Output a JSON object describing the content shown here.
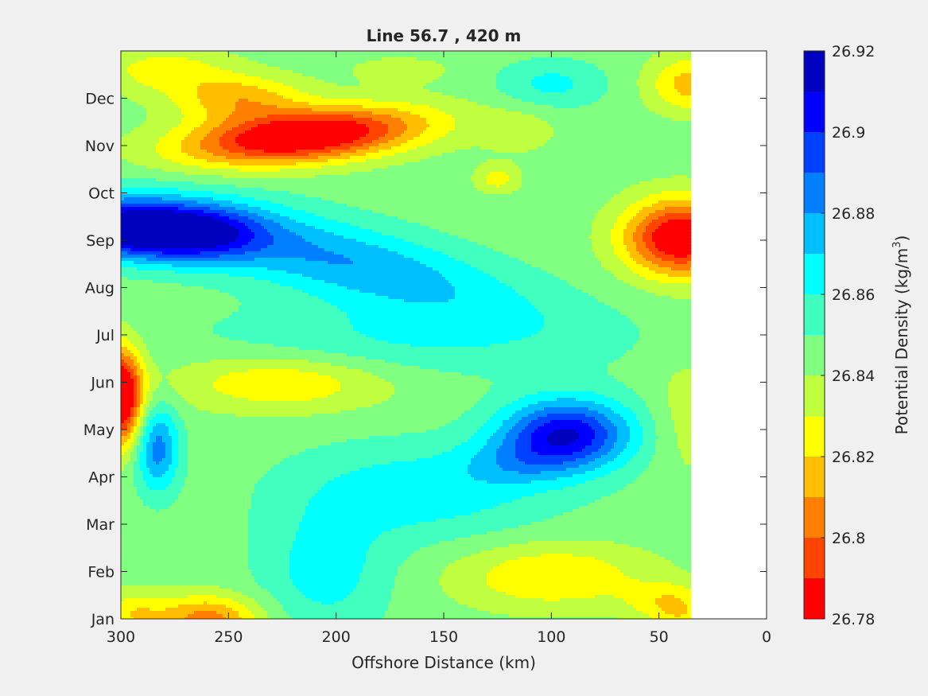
{
  "chart_data": {
    "type": "heatmap",
    "subtype": "filled-contour",
    "title": "Line 56.7 , 420 m",
    "xlabel": "Offshore Distance (km)",
    "colorbar_label_main": "Potential Density (kg/m",
    "colorbar_label_sup": "3",
    "colorbar_label_end": ")",
    "xlim": [
      300,
      0
    ],
    "x_reversed": true,
    "x_ticks": [
      300,
      250,
      200,
      150,
      100,
      50,
      0
    ],
    "x_tick_labels": [
      "300",
      "250",
      "200",
      "150",
      "100",
      "50",
      "0"
    ],
    "y_ticks": [
      1,
      2,
      3,
      4,
      5,
      6,
      7,
      8,
      9,
      10,
      11,
      12
    ],
    "y_tick_labels": [
      "Jan",
      "Feb",
      "Mar",
      "Apr",
      "May",
      "Jun",
      "Jul",
      "Aug",
      "Sep",
      "Oct",
      "Nov",
      "Dec"
    ],
    "ylim": [
      1,
      13
    ],
    "data_x_extent": [
      300,
      35
    ],
    "colorbar_range": [
      26.78,
      26.92
    ],
    "colorbar_ticks": [
      26.78,
      26.8,
      26.82,
      26.84,
      26.86,
      26.88,
      26.9,
      26.92
    ],
    "colorbar_tick_labels": [
      "26.78",
      "26.8",
      "26.82",
      "26.84",
      "26.86",
      "26.88",
      "26.9",
      "26.92"
    ],
    "levels": [
      26.78,
      26.79,
      26.8,
      26.81,
      26.82,
      26.83,
      26.84,
      26.85,
      26.86,
      26.87,
      26.88,
      26.89,
      26.9,
      26.91,
      26.92
    ],
    "colors": [
      "#ff0000",
      "#ff4400",
      "#ff7f00",
      "#ffbf00",
      "#ffff00",
      "#bfff40",
      "#80ff80",
      "#40ffbf",
      "#00ffff",
      "#00bfff",
      "#0080ff",
      "#0040ff",
      "#0000ff",
      "#0000bf"
    ],
    "background_value": 26.845,
    "features": [
      {
        "x": 215,
        "y": 11.2,
        "rx": 55,
        "ry": 0.55,
        "amp": -0.075,
        "tilt": -0.004
      },
      {
        "x": 245,
        "y": 12.0,
        "rx": 30,
        "ry": 0.5,
        "amp": -0.03
      },
      {
        "x": 40,
        "y": 9.05,
        "rx": 26,
        "ry": 0.8,
        "amp": -0.07
      },
      {
        "x": 35,
        "y": 12.3,
        "rx": 20,
        "ry": 0.6,
        "amp": -0.03
      },
      {
        "x": 280,
        "y": 12.6,
        "rx": 30,
        "ry": 0.5,
        "amp": -0.02
      },
      {
        "x": 170,
        "y": 12.6,
        "rx": 25,
        "ry": 0.3,
        "amp": -0.01
      },
      {
        "x": 125,
        "y": 10.3,
        "rx": 10,
        "ry": 0.3,
        "amp": -0.02
      },
      {
        "x": 115,
        "y": 11.3,
        "rx": 18,
        "ry": 0.5,
        "amp": -0.01
      },
      {
        "x": 270,
        "y": 9.15,
        "rx": 34,
        "ry": 0.6,
        "amp": 0.065
      },
      {
        "x": 200,
        "y": 8.6,
        "rx": 85,
        "ry": 0.85,
        "amp": 0.035,
        "tilt": 0.01
      },
      {
        "x": 300,
        "y": 9.3,
        "rx": 25,
        "ry": 0.6,
        "amp": 0.05
      },
      {
        "x": 100,
        "y": 12.3,
        "rx": 25,
        "ry": 0.5,
        "amp": 0.018
      },
      {
        "x": 93,
        "y": 4.9,
        "rx": 30,
        "ry": 0.75,
        "amp": 0.065
      },
      {
        "x": 118,
        "y": 4.3,
        "rx": 25,
        "ry": 0.5,
        "amp": 0.015
      },
      {
        "x": 160,
        "y": 3.7,
        "rx": 60,
        "ry": 1.0,
        "amp": 0.022
      },
      {
        "x": 170,
        "y": 6.9,
        "rx": 90,
        "ry": 0.8,
        "amp": 0.015
      },
      {
        "x": 300,
        "y": 5.7,
        "rx": 10,
        "ry": 1.0,
        "amp": -0.08
      },
      {
        "x": 283,
        "y": 4.6,
        "rx": 10,
        "ry": 0.9,
        "amp": 0.04
      },
      {
        "x": 225,
        "y": 6.0,
        "rx": 50,
        "ry": 0.6,
        "amp": -0.025
      },
      {
        "x": 205,
        "y": 2.0,
        "rx": 30,
        "ry": 1.3,
        "amp": 0.02
      },
      {
        "x": 260,
        "y": 1.0,
        "rx": 25,
        "ry": 0.5,
        "amp": -0.04
      },
      {
        "x": 100,
        "y": 1.9,
        "rx": 45,
        "ry": 0.7,
        "amp": -0.025
      },
      {
        "x": 45,
        "y": 1.4,
        "rx": 20,
        "ry": 0.4,
        "amp": -0.02
      },
      {
        "x": 40,
        "y": 1.0,
        "rx": 15,
        "ry": 0.35,
        "amp": -0.015
      },
      {
        "x": 295,
        "y": 1.1,
        "rx": 15,
        "ry": 0.5,
        "amp": -0.02
      },
      {
        "x": 38,
        "y": 5.3,
        "rx": 15,
        "ry": 1.5,
        "amp": -0.01
      }
    ]
  }
}
